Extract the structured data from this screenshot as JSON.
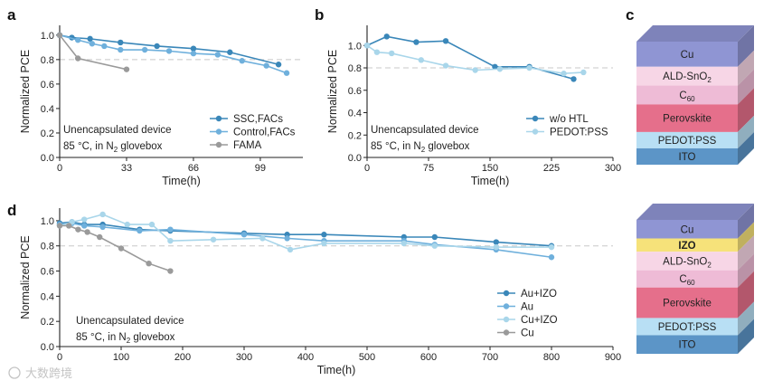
{
  "reference_line_value": 0.8,
  "colors": {
    "dark_blue": "#3a87b9",
    "mid_blue": "#6fb0dc",
    "light_blue": "#a9d6ea",
    "gray": "#9a9a9a",
    "refline": "#c8c8c8"
  },
  "chart_data": [
    {
      "id": "a",
      "panel_label": "a",
      "type": "line",
      "xlabel": "Time(h)",
      "ylabel": "Normalized PCE",
      "xlim": [
        0,
        120
      ],
      "ylim": [
        0,
        1.08
      ],
      "xticks": [
        0,
        33,
        66,
        99
      ],
      "yticks": [
        0.0,
        0.2,
        0.4,
        0.6,
        0.8,
        1.0
      ],
      "ytick_labels": [
        "0.0",
        "0.2",
        "0.4",
        "0.6",
        "0.8",
        "1.0"
      ],
      "annotation": {
        "line1": "Unencapsulated device",
        "line2_pre": "85 °C, in N",
        "line2_sub": "2",
        "line2_post": " glovebox"
      },
      "legend_position": "bottom-right",
      "series": [
        {
          "name": "SSC,FACs",
          "color": "#3a87b9",
          "x": [
            0,
            6,
            15,
            30,
            48,
            66,
            84,
            108
          ],
          "y": [
            1.0,
            0.98,
            0.97,
            0.94,
            0.91,
            0.89,
            0.86,
            0.76
          ]
        },
        {
          "name": "Control,FACs",
          "color": "#6fb0dc",
          "x": [
            0,
            9,
            16,
            22,
            30,
            42,
            54,
            66,
            78,
            90,
            102,
            112
          ],
          "y": [
            1.0,
            0.96,
            0.93,
            0.91,
            0.88,
            0.88,
            0.87,
            0.85,
            0.84,
            0.79,
            0.75,
            0.69
          ]
        },
        {
          "name": "FAMA",
          "color": "#9a9a9a",
          "x": [
            0,
            9,
            33
          ],
          "y": [
            1.0,
            0.81,
            0.72
          ]
        }
      ]
    },
    {
      "id": "b",
      "panel_label": "b",
      "type": "line",
      "xlabel": "Time(h)",
      "ylabel": "Normalized PCE",
      "xlim": [
        0,
        300
      ],
      "ylim": [
        0,
        1.18
      ],
      "xticks": [
        0,
        75,
        150,
        225,
        300
      ],
      "yticks": [
        0.0,
        0.2,
        0.4,
        0.6,
        0.8,
        1.0
      ],
      "ytick_labels": [
        "0.0",
        "0.2",
        "0.4",
        "0.6",
        "0.8",
        "1.0"
      ],
      "annotation": {
        "line1": "Unencapsulated device",
        "line2_pre": "85 °C, in N",
        "line2_sub": "2",
        "line2_post": " glovebox"
      },
      "legend_position": "bottom-right",
      "series": [
        {
          "name": "w/o HTL",
          "color": "#3a87b9",
          "x": [
            0,
            24,
            60,
            96,
            156,
            198,
            252
          ],
          "y": [
            1.0,
            1.08,
            1.03,
            1.04,
            0.81,
            0.81,
            0.7
          ]
        },
        {
          "name": "PEDOT:PSS",
          "color": "#a9d6ea",
          "x": [
            0,
            12,
            30,
            66,
            96,
            132,
            162,
            198,
            240,
            264
          ],
          "y": [
            1.0,
            0.94,
            0.93,
            0.87,
            0.82,
            0.78,
            0.79,
            0.8,
            0.75,
            0.76
          ]
        }
      ]
    },
    {
      "id": "d",
      "panel_label": "d",
      "type": "line",
      "xlabel": "Time(h)",
      "ylabel": "Normalized PCE",
      "xlim": [
        0,
        900
      ],
      "ylim": [
        0,
        1.1
      ],
      "xticks": [
        0,
        100,
        200,
        300,
        400,
        500,
        600,
        700,
        800,
        900
      ],
      "yticks": [
        0.0,
        0.2,
        0.4,
        0.6,
        0.8,
        1.0
      ],
      "ytick_labels": [
        "0.0",
        "0.2",
        "0.4",
        "0.6",
        "0.8",
        "1.0"
      ],
      "annotation": {
        "line1": "Unencapsulated device",
        "line2_pre": "85 °C, in N",
        "line2_sub": "2",
        "line2_post": " glovebox"
      },
      "legend_position": "bottom-right",
      "series": [
        {
          "name": "Au+IZO",
          "color": "#3a87b9",
          "x": [
            0,
            20,
            40,
            70,
            130,
            180,
            300,
            370,
            430,
            560,
            610,
            710,
            800
          ],
          "y": [
            0.98,
            0.99,
            0.97,
            0.97,
            0.93,
            0.92,
            0.9,
            0.89,
            0.89,
            0.87,
            0.87,
            0.83,
            0.8
          ]
        },
        {
          "name": "Au",
          "color": "#6fb0dc",
          "x": [
            0,
            20,
            40,
            70,
            130,
            180,
            300,
            370,
            430,
            560,
            610,
            710,
            800
          ],
          "y": [
            0.97,
            0.98,
            0.96,
            0.95,
            0.92,
            0.93,
            0.89,
            0.86,
            0.84,
            0.84,
            0.81,
            0.77,
            0.71
          ]
        },
        {
          "name": "Cu+IZO",
          "color": "#a9d6ea",
          "x": [
            0,
            20,
            40,
            70,
            110,
            150,
            180,
            250,
            330,
            375,
            430,
            560,
            610,
            710,
            800
          ],
          "y": [
            0.96,
            0.99,
            1.01,
            1.05,
            0.97,
            0.97,
            0.84,
            0.85,
            0.86,
            0.77,
            0.82,
            0.82,
            0.8,
            0.79,
            0.79
          ]
        },
        {
          "name": "Cu",
          "color": "#9a9a9a",
          "x": [
            0,
            15,
            30,
            45,
            65,
            100,
            145,
            180
          ],
          "y": [
            0.96,
            0.96,
            0.93,
            0.91,
            0.87,
            0.78,
            0.66,
            0.6
          ]
        }
      ]
    }
  ],
  "device_stacks": [
    {
      "id": "c",
      "panel_label": "c",
      "layers": [
        {
          "name": "Cu",
          "color": "#8f95d3",
          "height": 2
        },
        {
          "name": "ALD-SnO",
          "sub": "2",
          "sup": "",
          "color": "#f7d6e6",
          "height": 1.5
        },
        {
          "name": "C",
          "sub": "60",
          "sup": "",
          "color": "#eebbd6",
          "height": 1.5
        },
        {
          "name": "Perovskite",
          "color": "#e56f8b",
          "height": 2.2
        },
        {
          "name": "PEDOT:PSS",
          "color": "#b8dff4",
          "height": 1.3
        },
        {
          "name": "ITO",
          "color": "#5c95c7",
          "height": 1.3
        }
      ]
    },
    {
      "id": "c2",
      "panel_label": "",
      "layers": [
        {
          "name": "Cu",
          "color": "#8f95d3",
          "height": 1.4
        },
        {
          "name": "IZO",
          "color": "#f6e27a",
          "height": 1,
          "bold": true
        },
        {
          "name": "ALD-SnO",
          "sub": "2",
          "sup": "",
          "color": "#f7d6e6",
          "height": 1.4
        },
        {
          "name": "C",
          "sub": "60",
          "sup": "",
          "color": "#eebbd6",
          "height": 1.3
        },
        {
          "name": "Perovskite",
          "color": "#e56f8b",
          "height": 2.3
        },
        {
          "name": "PEDOT:PSS",
          "color": "#b8dff4",
          "height": 1.3
        },
        {
          "name": "ITO",
          "color": "#5c95c7",
          "height": 1.4
        }
      ]
    }
  ],
  "watermark": {
    "text": "大数跨境"
  }
}
